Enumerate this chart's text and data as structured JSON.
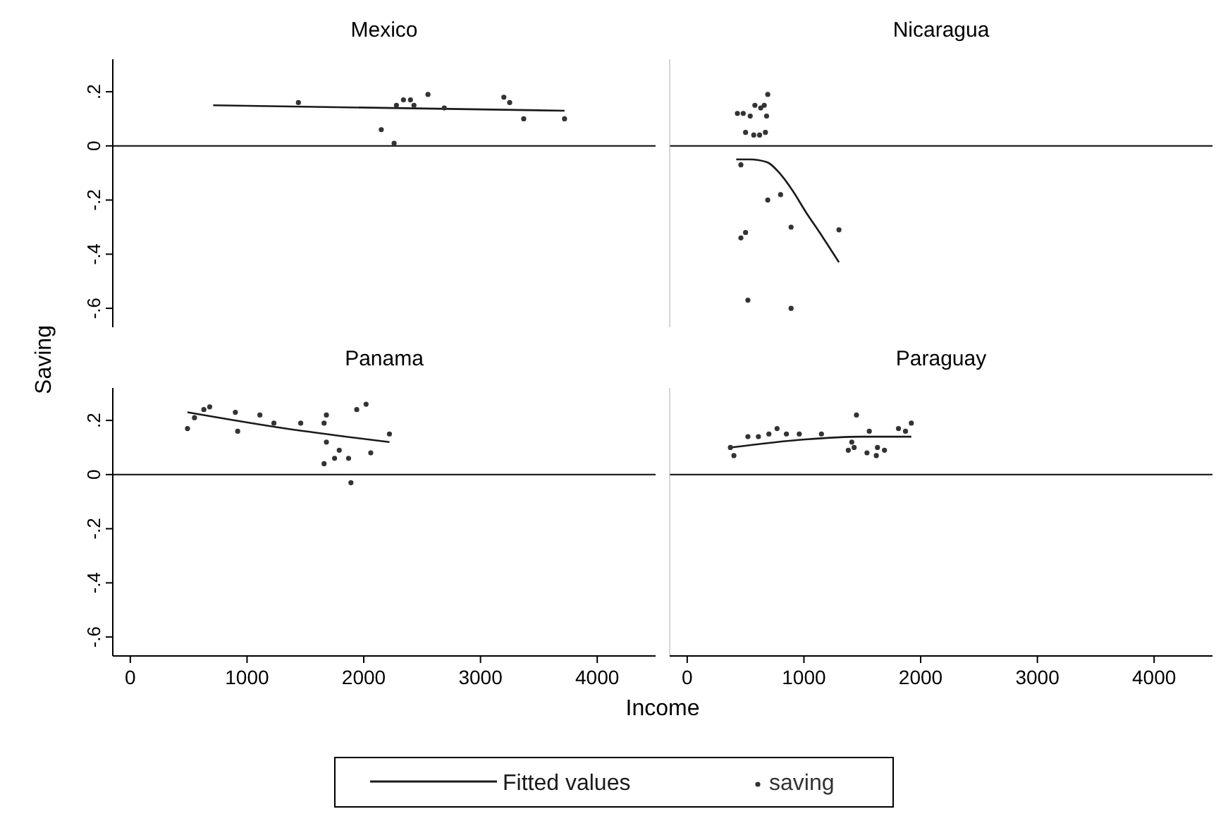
{
  "chart_data": [
    {
      "type": "scatter",
      "title": "Mexico",
      "ylabel": "Saving",
      "xlabel": "Income",
      "legend": "bottom",
      "tick_labels": "y",
      "xlim": [
        -150,
        4500
      ],
      "ylim": [
        -0.67,
        0.32
      ],
      "yticks": [
        {
          "value": -0.6,
          "label": "-.6"
        },
        {
          "value": -0.4,
          "label": "-.4"
        },
        {
          "value": -0.2,
          "label": "-.2"
        },
        0,
        {
          "value": 0.2,
          "label": ".2"
        }
      ],
      "ref_lines": [
        {
          "axis": "y",
          "value": 0,
          "color": "#222222"
        }
      ],
      "series": [
        {
          "name": "Fitted values",
          "type": "line",
          "color": "#1a1a1a",
          "x": [
            710,
            3720
          ],
          "values": [
            0.15,
            0.13
          ]
        },
        {
          "name": "saving",
          "marker": "circle",
          "color": "#333333",
          "x": [
            1440,
            2150,
            2260,
            2280,
            2340,
            2400,
            2430,
            2550,
            2690,
            3200,
            3250,
            3370,
            3720
          ],
          "values": [
            0.16,
            0.06,
            0.01,
            0.15,
            0.17,
            0.17,
            0.15,
            0.19,
            0.14,
            0.18,
            0.16,
            0.1,
            0.1
          ]
        }
      ]
    },
    {
      "type": "scatter",
      "title": "Nicaragua",
      "tick_labels": false,
      "xlim": [
        -150,
        4500
      ],
      "ylim": [
        -0.67,
        0.32
      ],
      "ref_lines": [
        {
          "axis": "y",
          "value": 0,
          "color": "#222222"
        }
      ],
      "series": [
        {
          "type": "line",
          "color": "#1a1a1a",
          "x": [
            420,
            540,
            680,
            810,
            910,
            1010,
            1150,
            1300
          ],
          "values": [
            -0.05,
            -0.05,
            -0.06,
            -0.11,
            -0.17,
            -0.24,
            -0.33,
            -0.43
          ]
        },
        {
          "marker": "circle",
          "color": "#333333",
          "x": [
            430,
            480,
            540,
            580,
            630,
            660,
            680,
            690,
            500,
            570,
            620,
            670,
            460,
            690,
            800,
            460,
            500,
            890,
            1300,
            520,
            890
          ],
          "values": [
            0.12,
            0.12,
            0.11,
            0.15,
            0.14,
            0.15,
            0.11,
            0.19,
            0.05,
            0.04,
            0.04,
            0.05,
            -0.07,
            -0.2,
            -0.18,
            -0.34,
            -0.32,
            -0.3,
            -0.31,
            -0.57,
            -0.6
          ]
        }
      ]
    },
    {
      "type": "scatter",
      "title": "Panama",
      "tick_labels": "xy",
      "xlim": [
        -150,
        4500
      ],
      "ylim": [
        -0.67,
        0.32
      ],
      "xticks": [
        0,
        1000,
        2000,
        3000,
        4000
      ],
      "yticks": [
        {
          "value": -0.6,
          "label": "-.6"
        },
        {
          "value": -0.4,
          "label": "-.4"
        },
        {
          "value": -0.2,
          "label": "-.2"
        },
        0,
        {
          "value": 0.2,
          "label": ".2"
        }
      ],
      "ref_lines": [
        {
          "axis": "y",
          "value": 0,
          "color": "#222222"
        }
      ],
      "series": [
        {
          "type": "line",
          "color": "#1a1a1a",
          "x": [
            490,
            1330,
            2220
          ],
          "values": [
            0.23,
            0.17,
            0.12
          ]
        },
        {
          "marker": "circle",
          "color": "#333333",
          "x": [
            490,
            550,
            630,
            680,
            900,
            920,
            1110,
            1230,
            1460,
            1660,
            1680,
            1680,
            1660,
            1750,
            1790,
            1870,
            1890,
            1940,
            2020,
            2060,
            2220
          ],
          "values": [
            0.17,
            0.21,
            0.24,
            0.25,
            0.23,
            0.16,
            0.22,
            0.19,
            0.19,
            0.19,
            0.22,
            0.12,
            0.04,
            0.06,
            0.09,
            0.06,
            -0.03,
            0.24,
            0.26,
            0.08,
            0.15
          ]
        }
      ]
    },
    {
      "type": "scatter",
      "title": "Paraguay",
      "tick_labels": "x",
      "xlim": [
        -150,
        4500
      ],
      "ylim": [
        -0.67,
        0.32
      ],
      "xticks": [
        0,
        1000,
        2000,
        3000,
        4000
      ],
      "ref_lines": [
        {
          "axis": "y",
          "value": 0,
          "color": "#222222"
        }
      ],
      "series": [
        {
          "type": "line",
          "color": "#1a1a1a",
          "x": [
            370,
            1010,
            1490,
            1920
          ],
          "values": [
            0.1,
            0.13,
            0.14,
            0.14
          ]
        },
        {
          "marker": "circle",
          "color": "#333333",
          "x": [
            370,
            400,
            520,
            610,
            700,
            770,
            850,
            960,
            1150,
            1380,
            1410,
            1430,
            1450,
            1540,
            1560,
            1620,
            1630,
            1690,
            1810,
            1870,
            1920
          ],
          "values": [
            0.1,
            0.07,
            0.14,
            0.14,
            0.15,
            0.17,
            0.15,
            0.15,
            0.15,
            0.09,
            0.12,
            0.1,
            0.22,
            0.08,
            0.16,
            0.07,
            0.1,
            0.09,
            0.17,
            0.16,
            0.19
          ]
        }
      ]
    }
  ]
}
